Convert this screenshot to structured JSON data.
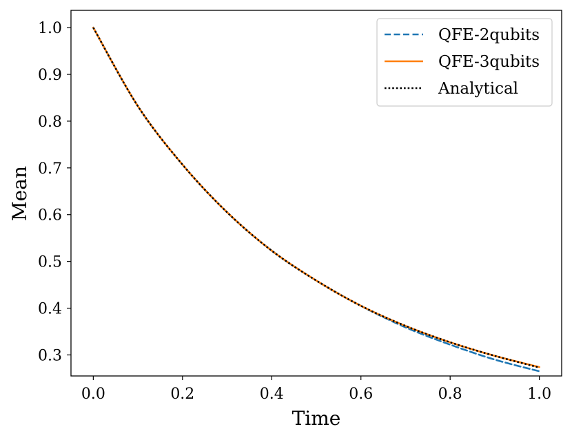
{
  "chart_data": {
    "type": "line",
    "title": "",
    "xlabel": "Time",
    "ylabel": "Mean",
    "xlim": [
      -0.05,
      1.05
    ],
    "ylim": [
      0.255,
      1.037
    ],
    "x_ticks": [
      0.0,
      0.2,
      0.4,
      0.6,
      0.8,
      1.0
    ],
    "x_tick_labels": [
      "0.0",
      "0.2",
      "0.4",
      "0.6",
      "0.8",
      "1.0"
    ],
    "y_ticks": [
      0.3,
      0.4,
      0.5,
      0.6,
      0.7,
      0.8,
      0.9,
      1.0
    ],
    "y_tick_labels": [
      "0.3",
      "0.4",
      "0.5",
      "0.6",
      "0.7",
      "0.8",
      "0.9",
      "1.0"
    ],
    "grid": false,
    "legend_position": "top-right",
    "x": [
      0.0,
      0.1,
      0.2,
      0.3,
      0.4,
      0.5,
      0.6,
      0.7,
      0.8,
      0.9,
      1.0
    ],
    "series": [
      {
        "name": "QFE-2qubits",
        "color": "#1f77b4",
        "style": "dashed",
        "values": [
          1.0,
          0.832,
          0.707,
          0.605,
          0.523,
          0.459,
          0.405,
          0.359,
          0.322,
          0.29,
          0.265
        ]
      },
      {
        "name": "QFE-3qubits",
        "color": "#ff7f0e",
        "style": "solid",
        "values": [
          1.0,
          0.832,
          0.707,
          0.605,
          0.523,
          0.459,
          0.405,
          0.362,
          0.327,
          0.298,
          0.274
        ]
      },
      {
        "name": "Analytical",
        "color": "#000000",
        "style": "dotted",
        "values": [
          1.0,
          0.832,
          0.707,
          0.605,
          0.523,
          0.459,
          0.405,
          0.362,
          0.327,
          0.298,
          0.273
        ]
      }
    ]
  }
}
